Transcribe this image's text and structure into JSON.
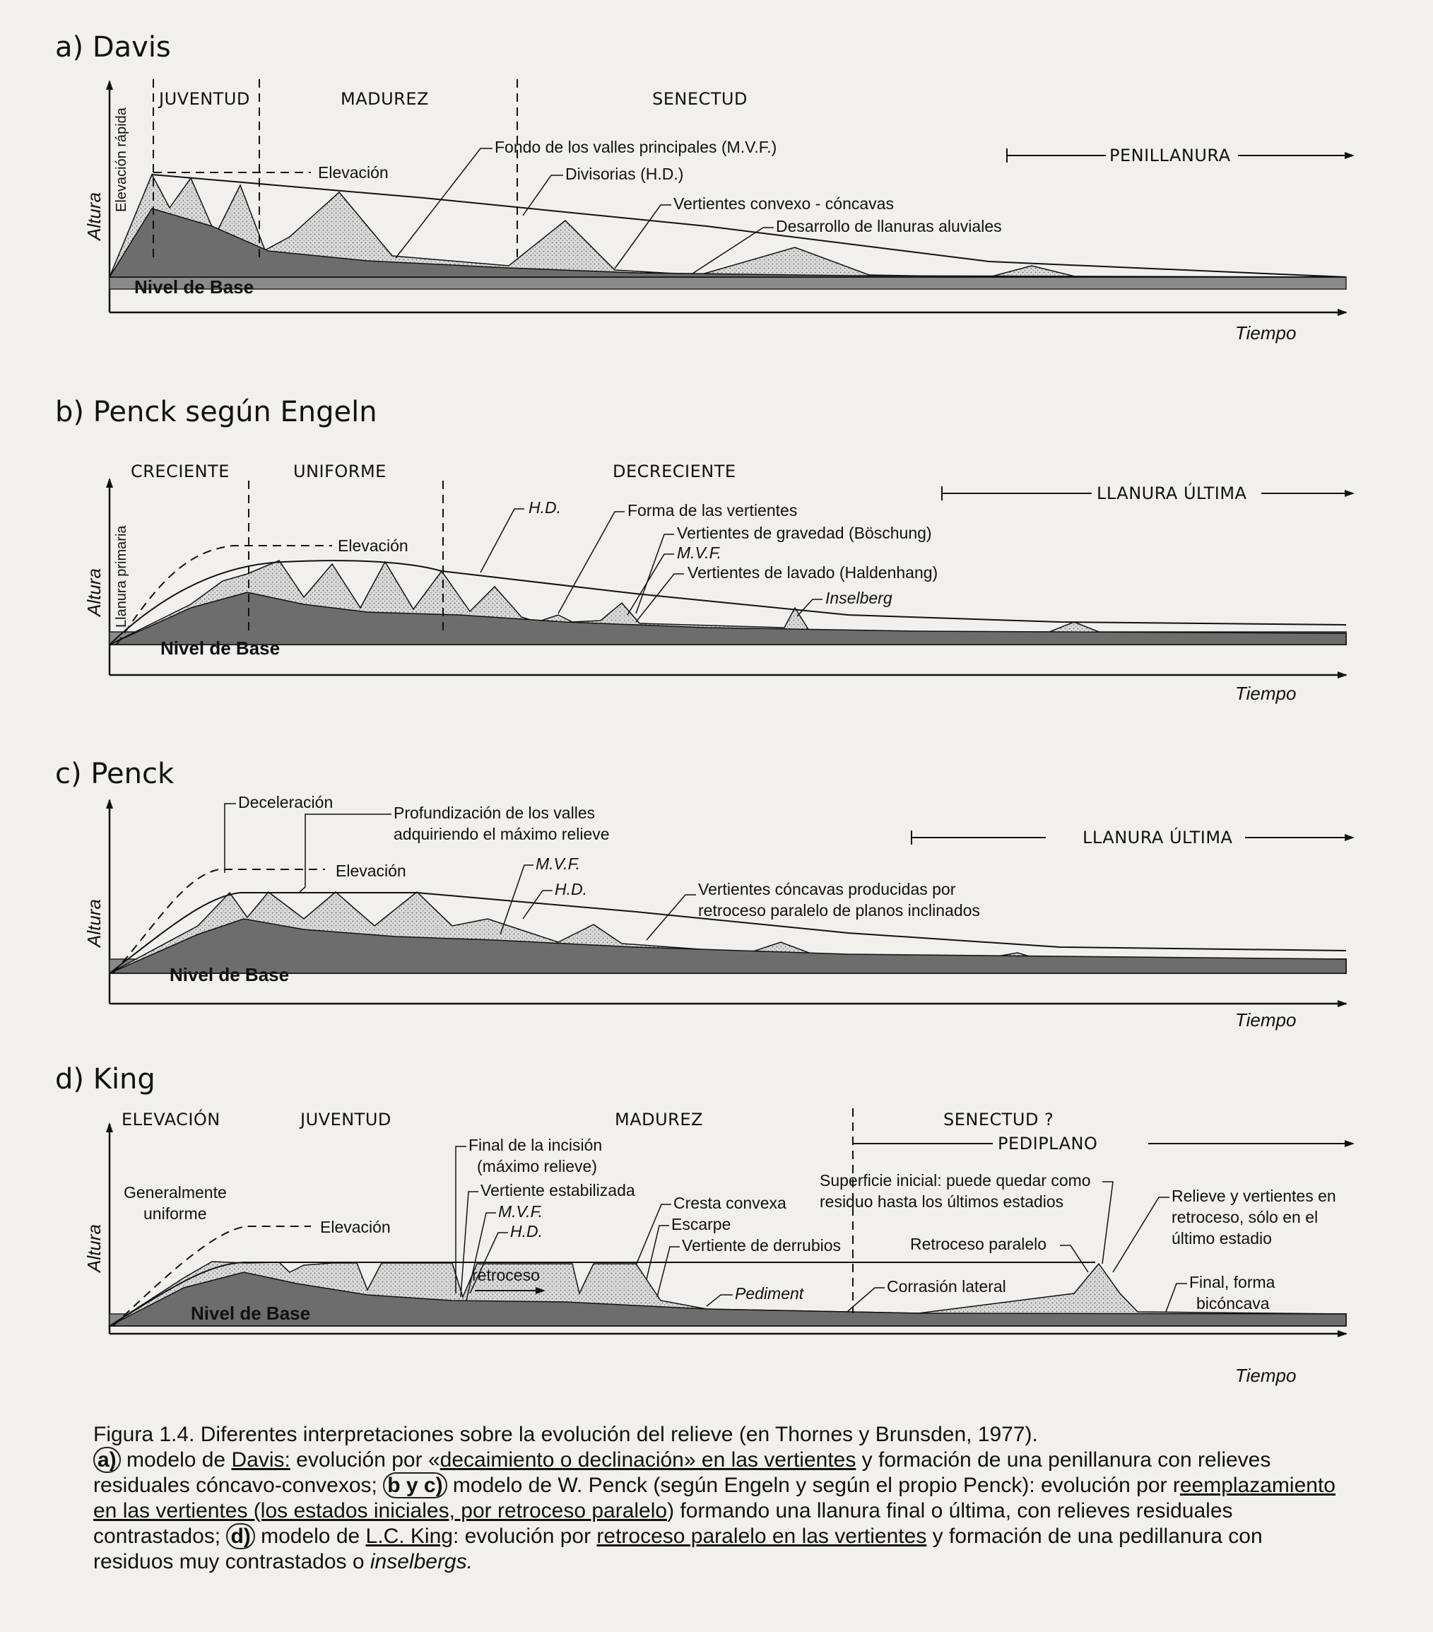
{
  "panels": {
    "a": {
      "title": "a) Davis",
      "stages": [
        "JUVENTUD",
        "MADUREZ",
        "SENECTUD"
      ],
      "final": "PENILLANURA",
      "y_label": "Altura",
      "y_sub": "Elevación rápida",
      "x_label": "Tiempo",
      "base": "Nivel de Base",
      "labels": [
        "Elevación",
        "Fondo de los valles principales (M.V.F.)",
        "Divisorias (H.D.)",
        "Vertientes convexo - cóncavas",
        "Desarrollo de llanuras aluviales"
      ]
    },
    "b": {
      "title": "b) Penck según Engeln",
      "stages": [
        "CRECIENTE",
        "UNIFORME",
        "DECRECIENTE"
      ],
      "final": "LLANURA ÚLTIMA",
      "y_label": "Altura",
      "y_sub": "Llanura primaria",
      "x_label": "Tiempo",
      "base": "Nivel de Base",
      "labels": [
        "Elevación",
        "H.D.",
        "Forma de las vertientes",
        "Vertientes de gravedad (Böschung)",
        "M.V.F.",
        "Vertientes de lavado (Haldenhang)",
        "Inselberg"
      ]
    },
    "c": {
      "title": "c) Penck",
      "final": "LLANURA ÚLTIMA",
      "y_label": "Altura",
      "x_label": "Tiempo",
      "base": "Nivel de Base",
      "labels": [
        "Deceleración",
        "Profundización de los valles",
        "adquiriendo el máximo relieve",
        "Elevación",
        "M.V.F.",
        "H.D.",
        "Vertientes cóncavas producidas por",
        "retroceso paralelo de planos inclinados"
      ]
    },
    "d": {
      "title": "d) King",
      "stages": [
        "ELEVACIÓN",
        "JUVENTUD",
        "MADUREZ",
        "SENECTUD ?"
      ],
      "final": "PEDIPLANO",
      "y_label": "Altura",
      "x_label": "Tiempo",
      "base": "Nivel de Base",
      "labels": [
        "Generalmente",
        "uniforme",
        "Elevación",
        "Final de la incisión",
        "(máximo relieve)",
        "Vertiente estabilizada",
        "M.V.F.",
        "H.D.",
        "retroceso",
        "Cresta convexa",
        "Escarpe",
        "Vertiente de derrubios",
        "Pediment",
        "Superficie inicial: puede quedar como",
        "residuo hasta los últimos estadios",
        "Retroceso paralelo",
        "Corrasión lateral",
        "Relieve y vertientes en",
        "retroceso, sólo en el",
        "último estadio",
        "Final, forma",
        "bicóncava"
      ]
    }
  },
  "caption": {
    "line1": "Figura 1.4. Diferentes interpretaciones sobre la evolución del relieve (en Thornes y Brunsden, 1977).",
    "a_tag": "a)",
    "a_text1": " modelo de ",
    "a_davis": "Davis:",
    "a_text2": " evolución por «",
    "a_decay": "decaimiento o declinación» en las vertientes",
    "a_text3": " y formación de una penillanura con relieves residuales cóncavo-convexos; ",
    "bc_tag": "b y c)",
    "bc_text1": " modelo de W. Penck (según Engeln y según el propio Penck): evolución por r",
    "bc_repl": "eemplazamiento en las vertientes (los estados iniciales, por retroceso paralelo",
    "bc_text2": ") formando una llanura final o última, con relieves residuales contrastados; ",
    "d_tag": "d)",
    "d_text1": " modelo de ",
    "d_king": "L.C. King",
    "d_text2": ": evolución por ",
    "d_ret": "retroceso paralelo en las vertientes",
    "d_text3": " y formación de una pedillanura con residuos muy contrastados o ",
    "d_insel": "inselbergs."
  }
}
